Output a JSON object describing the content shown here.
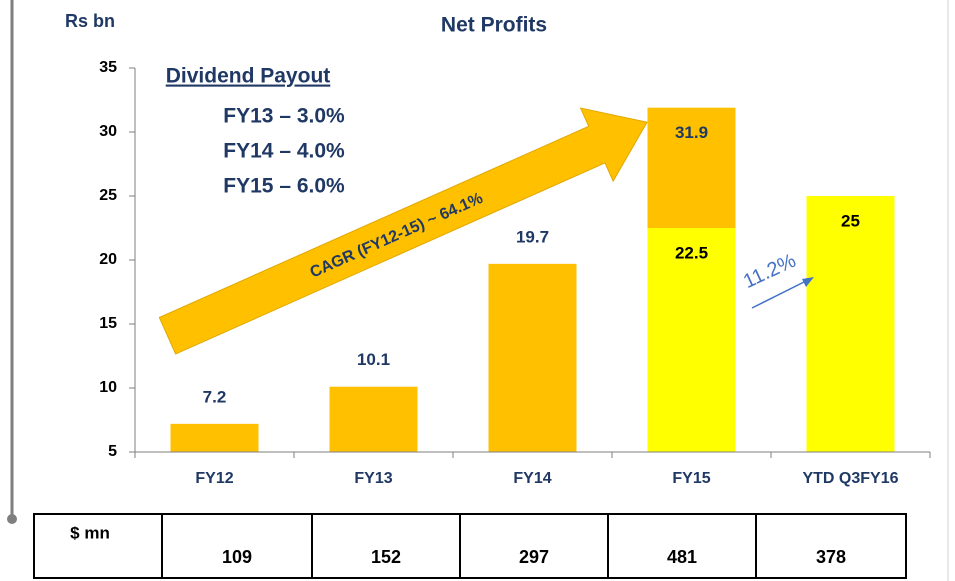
{
  "chart_data": {
    "type": "bar",
    "title": "Net Profits",
    "y_unit": "Rs bn",
    "categories": [
      "FY12",
      "FY13",
      "FY14",
      "FY15",
      "YTD Q3FY16"
    ],
    "series": [
      {
        "color": "#FFC000",
        "values": [
          7.2,
          10.1,
          19.7,
          31.9,
          null
        ]
      },
      {
        "color": "#FFFF00",
        "values": [
          null,
          null,
          null,
          22.5,
          25.0
        ]
      }
    ],
    "ylim": [
      5,
      35
    ],
    "yticks": [
      5,
      10,
      15,
      20,
      25,
      30,
      35
    ],
    "annotations": {
      "dividend_title": "Dividend Payout",
      "dividend": [
        "FY13 – 3.0%",
        "FY14 – 4.0%",
        "FY15 – 6.0%"
      ],
      "cagr": "CAGR (FY12-15) ~ 64.1%",
      "growth": "11.2%"
    }
  },
  "table": {
    "header": "$ mn",
    "values": [
      109,
      152,
      297,
      481,
      378
    ]
  }
}
